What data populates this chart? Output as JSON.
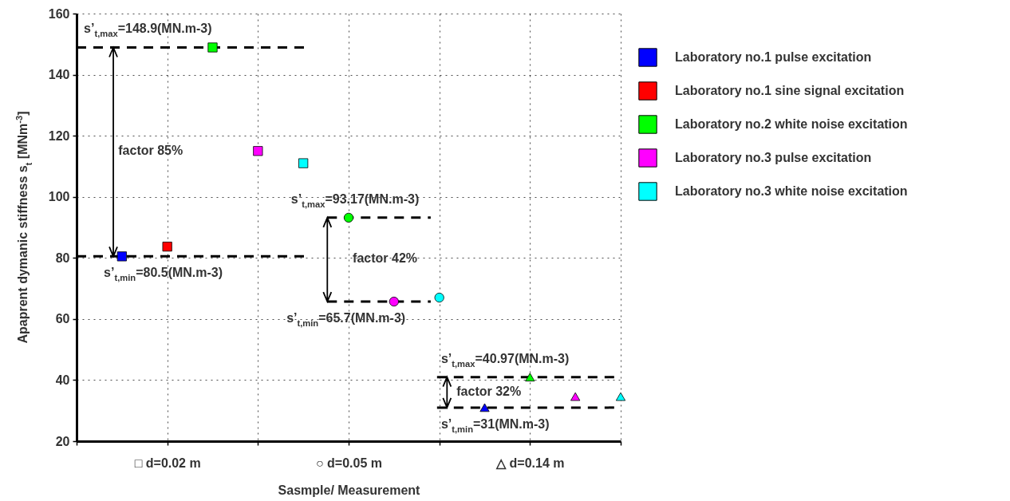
{
  "chart_data": {
    "type": "scatter",
    "xlabel": "Sasmple/ Measurement",
    "ylabel": "Apaprent dymanic stiffness s$_{t}$ [MNm$^{-3}$]",
    "categories": [
      null,
      "□ d=0.02 m",
      null,
      null,
      null,
      "○ d=0.05 m",
      null,
      null,
      null,
      "△ d=0.14 m",
      null,
      null
    ],
    "ylim": [
      20,
      160
    ],
    "yticks": [
      20,
      40,
      60,
      80,
      100,
      120,
      140,
      160
    ],
    "grid": true,
    "legend": "right",
    "series": [
      {
        "name": "Laboratory no.1 pulse excitation",
        "color": "#0000ff",
        "marker": "square",
        "values": [
          80.5,
          null,
          null,
          null,
          null,
          null,
          null,
          null,
          null,
          null,
          null,
          null
        ]
      },
      {
        "name": "Laboratory no.1 sine signal excitation",
        "color": "#ff0000",
        "marker": "square",
        "values": [
          null,
          83.7,
          null,
          null,
          null,
          null,
          null,
          null,
          null,
          null,
          null,
          null
        ]
      },
      {
        "name": "Laboratory no.2 white noise excitation",
        "color": "#00ff00",
        "marker": "square",
        "values": [
          null,
          null,
          148.9,
          null,
          null,
          null,
          null,
          null,
          null,
          null,
          null,
          null
        ]
      },
      {
        "name": "Laboratory no.3 pulse excitation",
        "color": "#ff00ff",
        "marker": "square",
        "values": [
          null,
          null,
          null,
          115,
          null,
          null,
          null,
          null,
          null,
          null,
          null,
          null
        ]
      },
      {
        "name": "Laboratory no.3 white noise excitation",
        "color": "#00ffff",
        "marker": "square",
        "values": [
          null,
          null,
          null,
          null,
          111,
          null,
          null,
          null,
          null,
          null,
          null,
          null
        ]
      },
      {
        "color": "#00ff00",
        "marker": "circle",
        "values": [
          null,
          null,
          null,
          null,
          null,
          93.17,
          null,
          null,
          null,
          null,
          null,
          null
        ]
      },
      {
        "color": "#ff00ff",
        "marker": "circle",
        "values": [
          null,
          null,
          null,
          null,
          null,
          null,
          65.7,
          null,
          null,
          null,
          null,
          null
        ]
      },
      {
        "color": "#00ffff",
        "marker": "circle",
        "values": [
          null,
          null,
          null,
          null,
          null,
          null,
          null,
          67,
          null,
          null,
          null,
          null
        ]
      },
      {
        "color": "#0000ff",
        "marker": "triangle",
        "values": [
          null,
          null,
          null,
          null,
          null,
          null,
          null,
          null,
          31,
          null,
          null,
          null
        ]
      },
      {
        "color": "#00ff00",
        "marker": "triangle",
        "values": [
          null,
          null,
          null,
          null,
          null,
          null,
          null,
          null,
          null,
          40.97,
          null,
          null
        ]
      },
      {
        "color": "#ff00ff",
        "marker": "triangle",
        "values": [
          null,
          null,
          null,
          null,
          null,
          null,
          null,
          null,
          null,
          null,
          34.6,
          null
        ]
      },
      {
        "color": "#00ffff",
        "marker": "triangle",
        "values": [
          null,
          null,
          null,
          null,
          null,
          null,
          null,
          null,
          null,
          null,
          null,
          34.6
        ]
      }
    ],
    "ref_lines": [
      {
        "axis": "y",
        "value": 148.9,
        "label": "s’$_{t,max}$=148.9(MN.m-3)",
        "color": "#000000",
        "line_style": "dashed"
      },
      {
        "axis": "y",
        "value": 80.5,
        "label": "s’$_{t,min}$=80.5(MN.m-3)",
        "color": "#000000",
        "line_style": "dashed"
      },
      {
        "axis": "y",
        "value": 93.17,
        "label": "s’$_{t,max}$=93.17(MN.m-3)",
        "color": "#000000",
        "line_style": "dashed"
      },
      {
        "axis": "y",
        "value": 65.7,
        "label": "s’$_{t,min}$=65.7(MN.m-3)",
        "color": "#000000",
        "line_style": "dashed"
      },
      {
        "axis": "y",
        "value": 40.97,
        "label": "s’$_{t,max}$=40.97(MN.m-3)",
        "color": "#000000",
        "line_style": "dashed"
      },
      {
        "axis": "y",
        "value": 31,
        "label": "s’$_{t,min}$=31(MN.m-3)",
        "color": "#000000",
        "line_style": "dashed"
      }
    ],
    "annotations": [
      "factor 85%",
      "factor 42%",
      "factor 32%"
    ]
  }
}
